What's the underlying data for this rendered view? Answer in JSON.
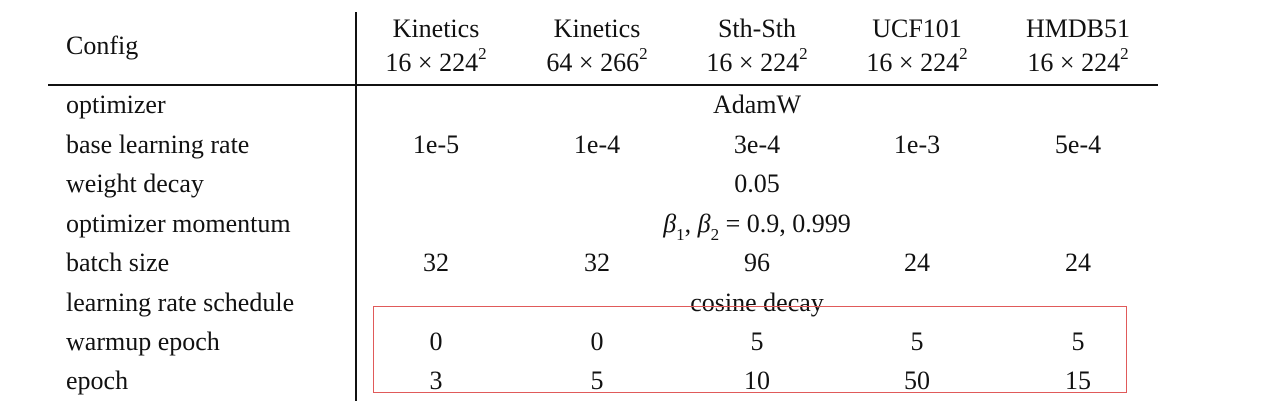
{
  "table": {
    "config_header": "Config",
    "columns": [
      {
        "dataset": "Kinetics",
        "frames": "16",
        "res_base": "224",
        "res_exp": "2"
      },
      {
        "dataset": "Kinetics",
        "frames": "64",
        "res_base": "266",
        "res_exp": "2"
      },
      {
        "dataset": "Sth-Sth",
        "frames": "16",
        "res_base": "224",
        "res_exp": "2"
      },
      {
        "dataset": "UCF101",
        "frames": "16",
        "res_base": "224",
        "res_exp": "2"
      },
      {
        "dataset": "HMDB51",
        "frames": "16",
        "res_base": "224",
        "res_exp": "2"
      }
    ],
    "times": "×",
    "rows": [
      {
        "label": "optimizer",
        "span": "AdamW"
      },
      {
        "label": "base learning rate",
        "values": [
          "1e-5",
          "1e-4",
          "3e-4",
          "1e-3",
          "5e-4"
        ]
      },
      {
        "label": "weight decay",
        "span": "0.05"
      },
      {
        "label": "optimizer momentum",
        "span_math": {
          "beta": "β",
          "sub1": "1",
          "sub2": "2",
          "eq": "= 0.9, 0.999"
        }
      },
      {
        "label": "batch size",
        "values": [
          "32",
          "32",
          "96",
          "24",
          "24"
        ]
      },
      {
        "label": "learning rate schedule",
        "span": "cosine decay"
      },
      {
        "label": "warmup epoch",
        "values": [
          "0",
          "0",
          "5",
          "5",
          "5"
        ]
      },
      {
        "label": "epoch",
        "values": [
          "3",
          "5",
          "10",
          "50",
          "15"
        ]
      }
    ]
  },
  "highlight": {
    "color": "#e05a5a"
  }
}
